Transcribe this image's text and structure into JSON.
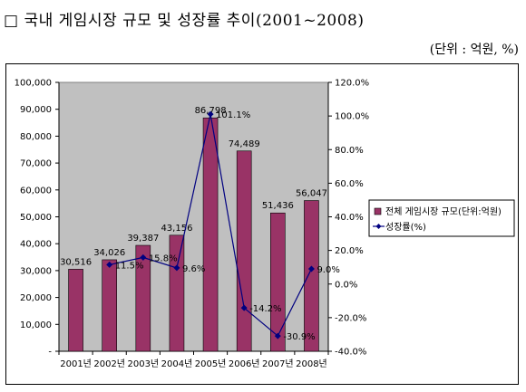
{
  "title": "□ 국내 게임시장 규모 및 성장률 추이(2001~2008)",
  "unit_note": "(단위 : 억원, %)",
  "colors": {
    "bar": "#993366",
    "line": "#000080",
    "plot_bg": "#c0c0c0"
  },
  "chart_data": {
    "type": "bar",
    "categories": [
      "2001년",
      "2002년",
      "2003년",
      "2004년",
      "2005년",
      "2006년",
      "2007년",
      "2008년"
    ],
    "series": [
      {
        "name": "전체 게임시장 규모(단위:억원)",
        "type": "bar",
        "axis": "left",
        "values": [
          30516,
          34026,
          39387,
          43156,
          86798,
          74489,
          51436,
          56047
        ],
        "labels": [
          "30,516",
          "34,026",
          "39,387",
          "43,156",
          "86,798",
          "74,489",
          "51,436",
          "56,047"
        ]
      },
      {
        "name": "성장률(%)",
        "type": "line",
        "axis": "right",
        "values": [
          null,
          11.5,
          15.8,
          9.6,
          101.1,
          -14.2,
          -30.9,
          9.0
        ],
        "labels": [
          "",
          "11.5%",
          "15.8%",
          "9.6%",
          "101.1%",
          "-14.2%",
          "-30.9%",
          "9.0%"
        ]
      }
    ],
    "y_left": {
      "min": 0,
      "max": 100000,
      "ticks": [
        "-",
        "10,000",
        "20,000",
        "30,000",
        "40,000",
        "50,000",
        "60,000",
        "70,000",
        "80,000",
        "90,000",
        "100,000"
      ]
    },
    "y_right": {
      "min": -40,
      "max": 120,
      "ticks": [
        "-40.0%",
        "-20.0%",
        "0.0%",
        "20.0%",
        "40.0%",
        "60.0%",
        "80.0%",
        "100.0%",
        "120.0%"
      ]
    },
    "grid": false,
    "legend": "right"
  }
}
